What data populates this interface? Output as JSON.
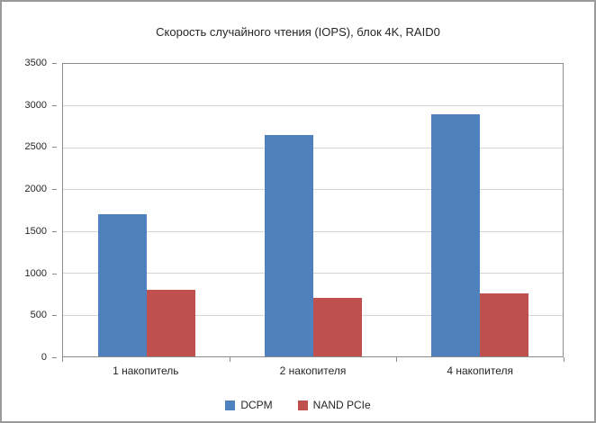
{
  "chart_data": {
    "type": "bar",
    "title": "Скорость случайного чтения (IOPS), блок 4K, RAID0",
    "categories": [
      "1 накопитель",
      "2 накопителя",
      "4 накопителя"
    ],
    "series": [
      {
        "name": "DCPM",
        "color": "#4f81bd",
        "values": [
          1700,
          2650,
          2900
        ]
      },
      {
        "name": "NAND PCIe",
        "color": "#c0504d",
        "values": [
          800,
          700,
          750
        ]
      }
    ],
    "ylim": [
      0,
      3500
    ],
    "ytick_step": 500,
    "grid": true,
    "legend_position": "bottom",
    "xlabel": "",
    "ylabel": ""
  },
  "colors": {
    "gridline": "#d4d4d4",
    "plot_border": "#8c8c8c",
    "axis_text": "#262626",
    "outer_border": "#9a9a9a",
    "background": "#ffffff"
  }
}
